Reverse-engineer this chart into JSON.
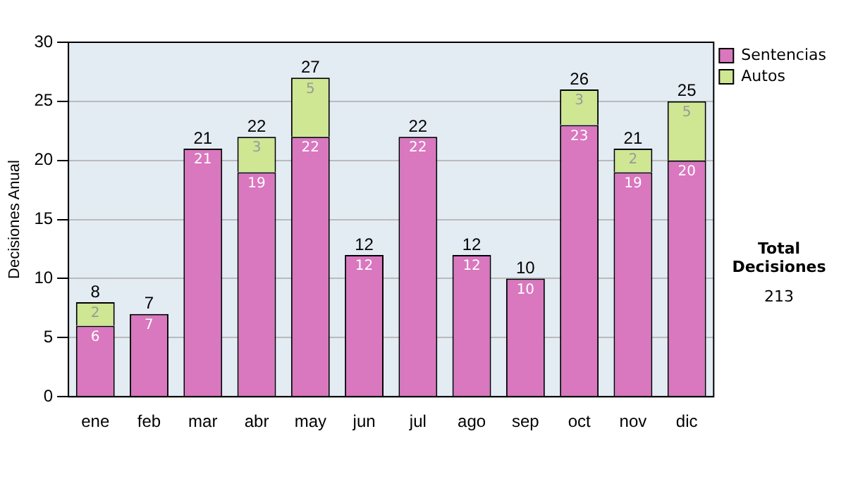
{
  "chart_data": {
    "type": "bar",
    "stacked": true,
    "ylabel": "Decisiones Anual",
    "categories": [
      "ene",
      "feb",
      "mar",
      "abr",
      "may",
      "jun",
      "jul",
      "ago",
      "sep",
      "oct",
      "nov",
      "dic"
    ],
    "series": [
      {
        "name": "Sentencias",
        "color": "#d977bf",
        "values": [
          6,
          7,
          21,
          19,
          22,
          12,
          22,
          12,
          10,
          23,
          19,
          20
        ]
      },
      {
        "name": "Autos",
        "color": "#cfe693",
        "values": [
          2,
          null,
          null,
          3,
          5,
          null,
          null,
          null,
          null,
          3,
          2,
          5
        ]
      }
    ],
    "totals": [
      "8",
      "7",
      "21",
      "22",
      "27",
      "12",
      "22",
      "12",
      "10",
      "26",
      "21",
      "25"
    ],
    "ylim": [
      0,
      30
    ],
    "yticks": [
      0,
      5,
      10,
      15,
      20,
      25,
      30
    ],
    "grid": "y",
    "legend": "right",
    "data_labels": true,
    "annotations": [
      "Total Decisiones",
      "213"
    ]
  }
}
